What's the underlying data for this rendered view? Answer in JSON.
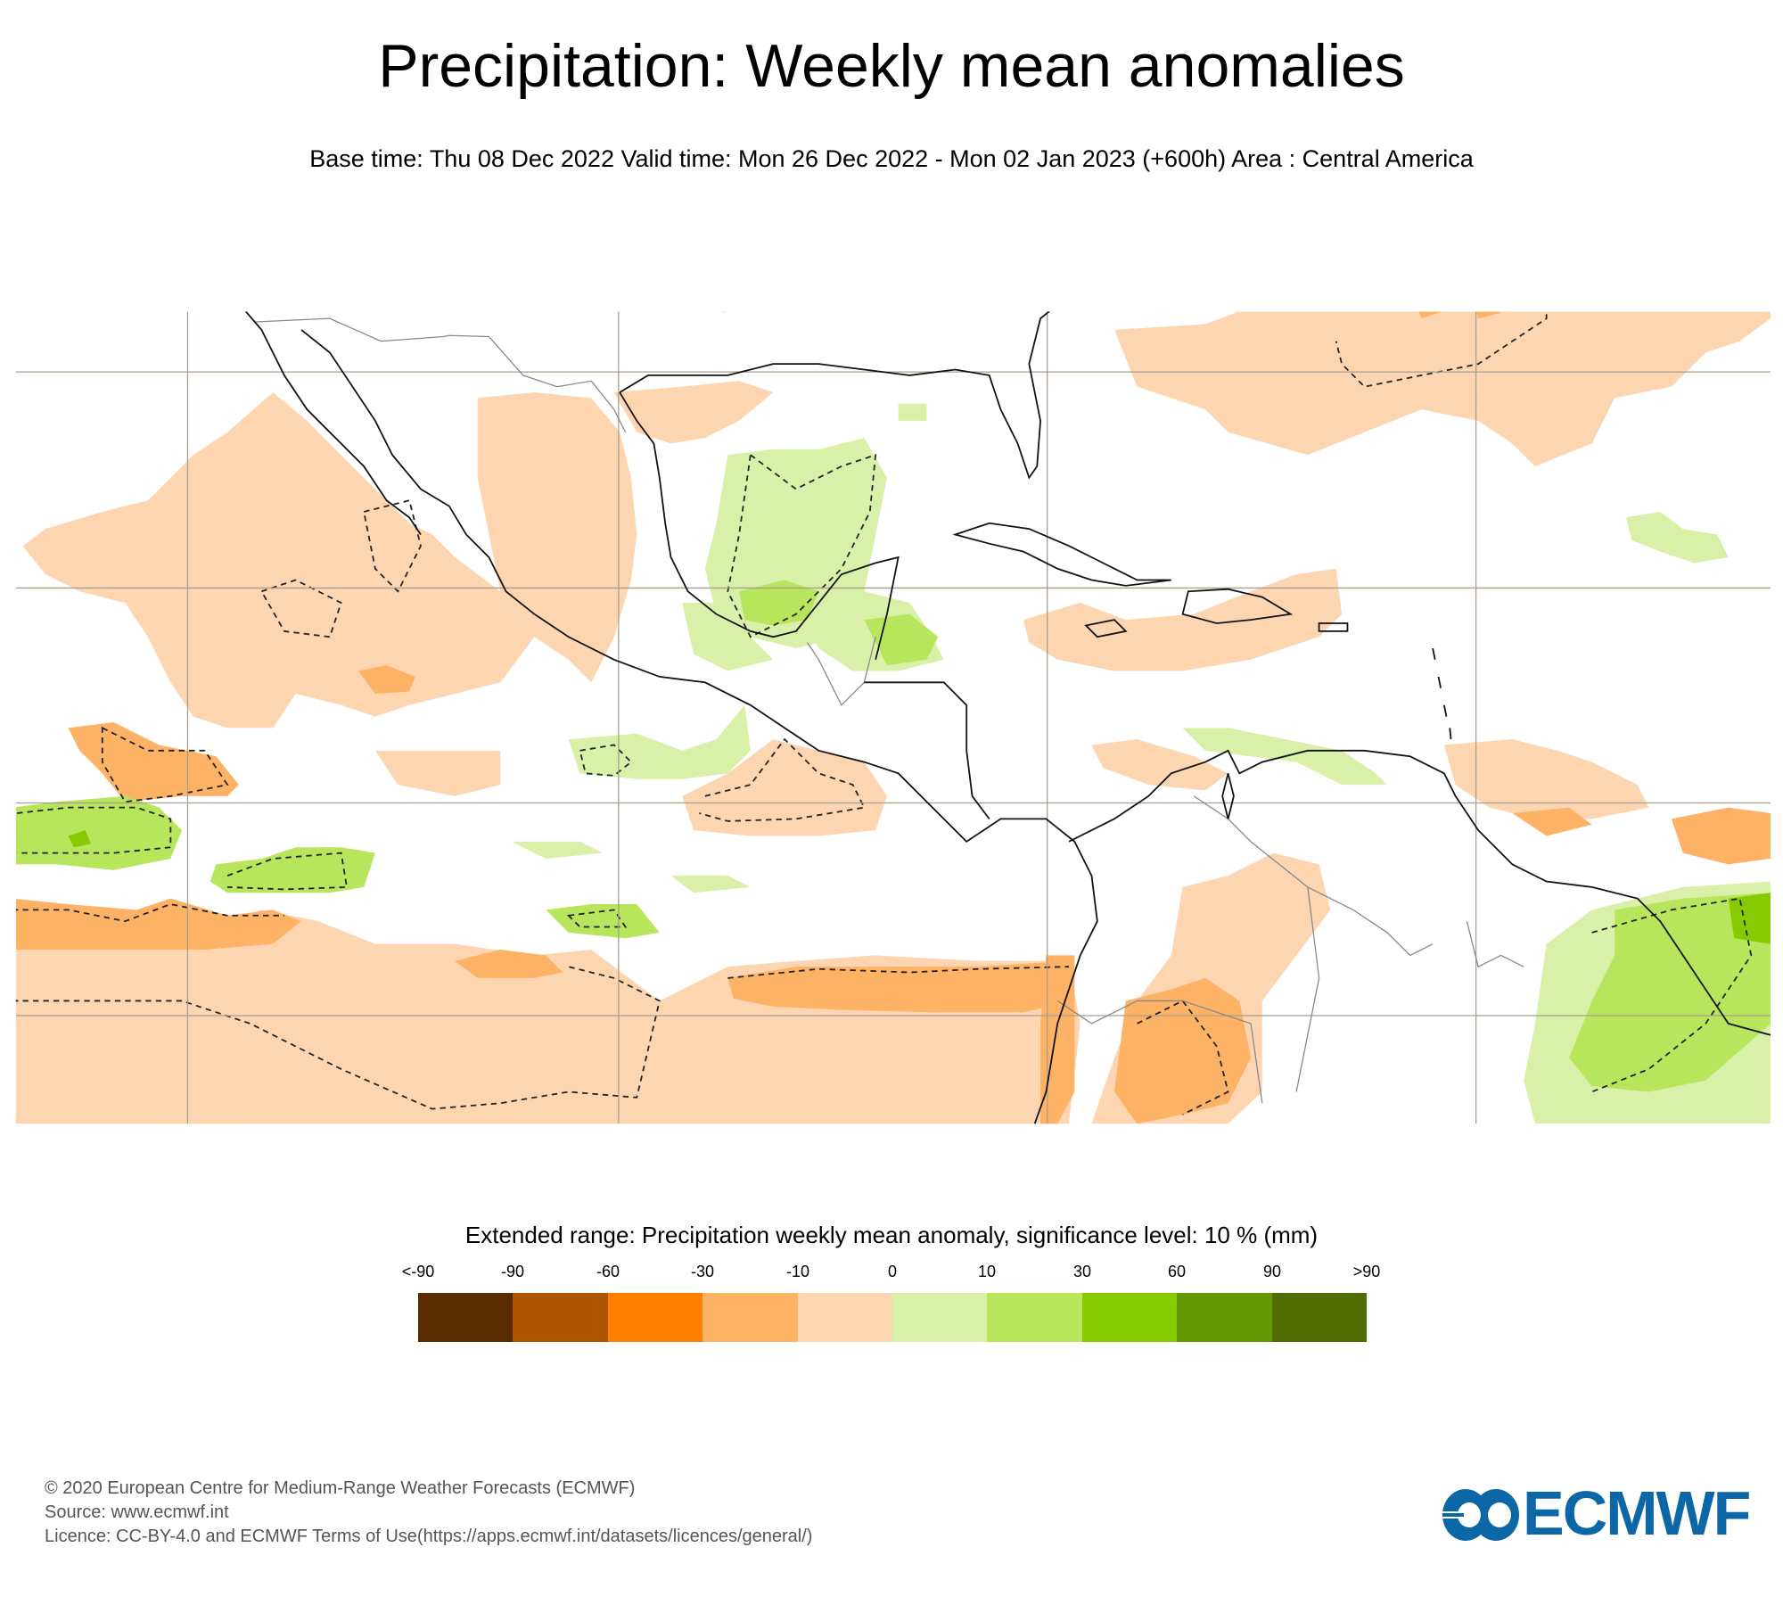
{
  "header": {
    "title": "Precipitation: Weekly mean anomalies",
    "subtitle": "Base time: Thu 08 Dec 2022 Valid time: Mon 26 Dec 2022 - Mon 02 Jan 2023 (+600h) Area : Central America"
  },
  "map": {
    "area": "Central America",
    "significance_contour": "dashed",
    "colors": {
      "coast": "#000000",
      "border": "#888888",
      "grid": "#a89e8c"
    }
  },
  "legend": {
    "title": "Extended range: Precipitation weekly mean anomaly, significance level: 10 % (mm)",
    "labels": [
      "<-90",
      "-90",
      "-60",
      "-30",
      "-10",
      "0",
      "10",
      "30",
      "60",
      "90",
      ">90"
    ],
    "colors": [
      "#5a2d00",
      "#ad5500",
      "#ff7f00",
      "#fdb266",
      "#fdd5b1",
      "#d9f0a8",
      "#b7e55c",
      "#87ca00",
      "#659800",
      "#526b00"
    ]
  },
  "footer": {
    "copyright": "© 2020 European Centre for Medium-Range Weather Forecasts (ECMWF)",
    "source": "Source: www.ecmwf.int",
    "licence": "Licence: CC-BY-4.0 and ECMWF Terms of Use(https://apps.ecmwf.int/datasets/licences/general/)"
  },
  "logo": {
    "text": "ECMWF",
    "color": "#0b67a5"
  }
}
